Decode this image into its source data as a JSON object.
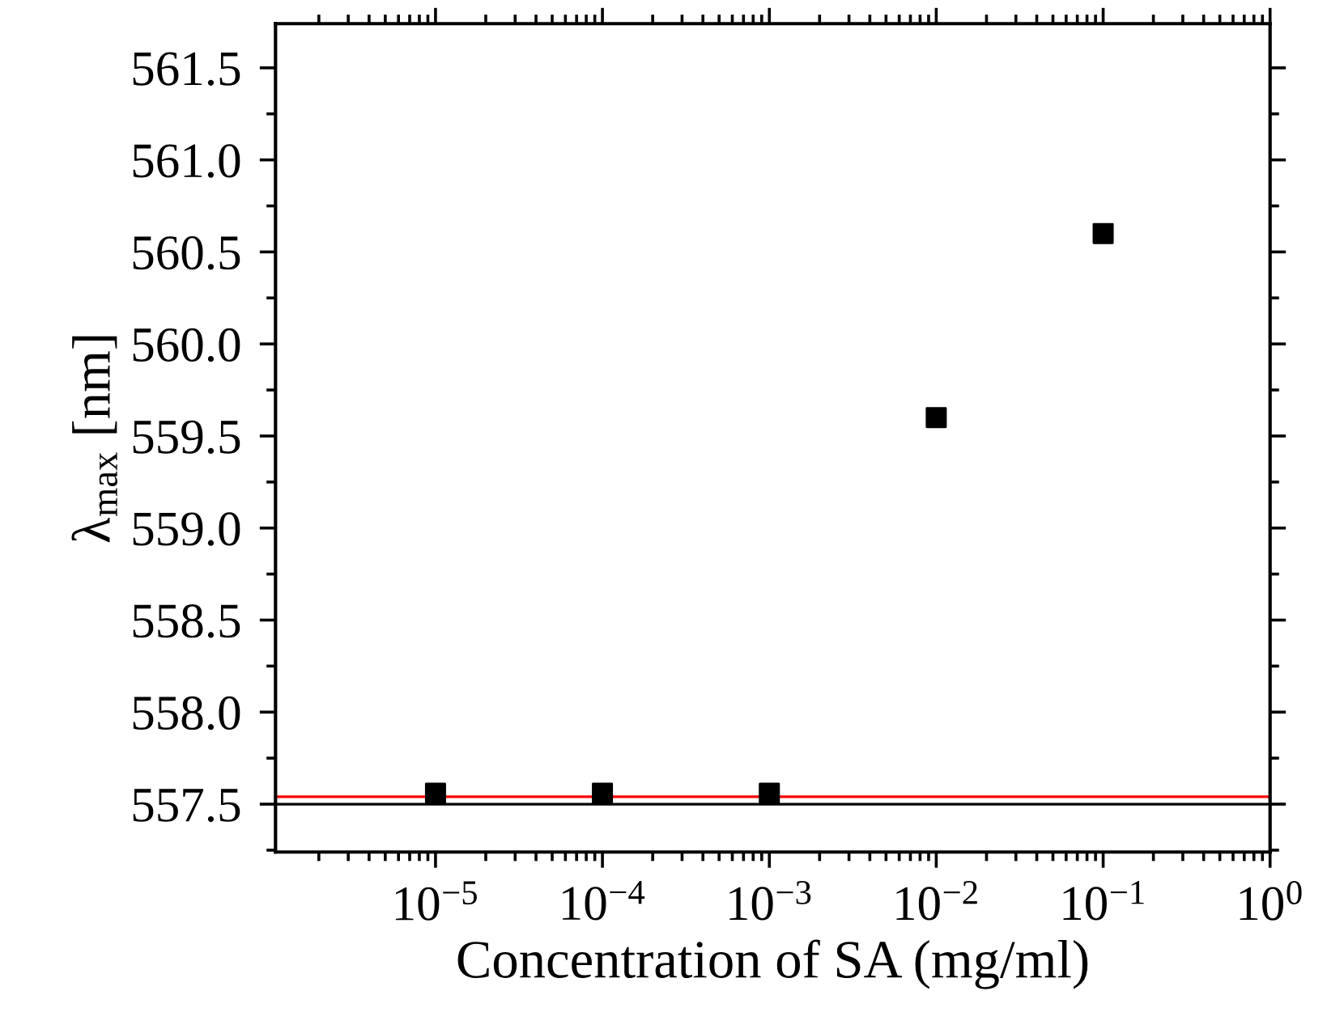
{
  "chart_data": {
    "type": "scatter",
    "xlabel": "Concentration of SA (mg/ml)",
    "ylabel": "λ$_{max}$ [nm]",
    "x": [
      1e-05,
      0.0001,
      0.001,
      0.01,
      0.1
    ],
    "series": [
      {
        "color": "#000000",
        "values": [
          557.56,
          557.56,
          557.56,
          559.6,
          560.6
        ]
      }
    ],
    "marker": "square",
    "log": "x",
    "xlim": [
      1.1e-06,
      1
    ],
    "xticks": [
      {
        "value": 1e-05,
        "label": "10$^{−5}$"
      },
      {
        "value": 0.0001,
        "label": "10$^{−4}$"
      },
      {
        "value": 0.001,
        "label": "10$^{−3}$"
      },
      {
        "value": 0.01,
        "label": "10$^{−2}$"
      },
      {
        "value": 0.1,
        "label": "10$^{−1}$"
      },
      {
        "value": 1,
        "label": "10$^{0}$"
      }
    ],
    "ylim": [
      557.24,
      561.74
    ],
    "yticks": [
      {
        "value": 557.5,
        "label": "557.5"
      },
      {
        "value": 558.0,
        "label": "558.0"
      },
      {
        "value": 558.5,
        "label": "558.5"
      },
      {
        "value": 559.0,
        "label": "559.0"
      },
      {
        "value": 559.5,
        "label": "559.5"
      },
      {
        "value": 560.0,
        "label": "560.0"
      },
      {
        "value": 560.5,
        "label": "560.5"
      },
      {
        "value": 561.0,
        "label": "561.0"
      },
      {
        "value": 561.5,
        "label": "561.5"
      }
    ],
    "ref_lines": [
      {
        "axis": "y",
        "value": 557.54,
        "color": "#ff0000"
      },
      {
        "axis": "y",
        "value": 557.5,
        "color": "#000000"
      }
    ]
  }
}
